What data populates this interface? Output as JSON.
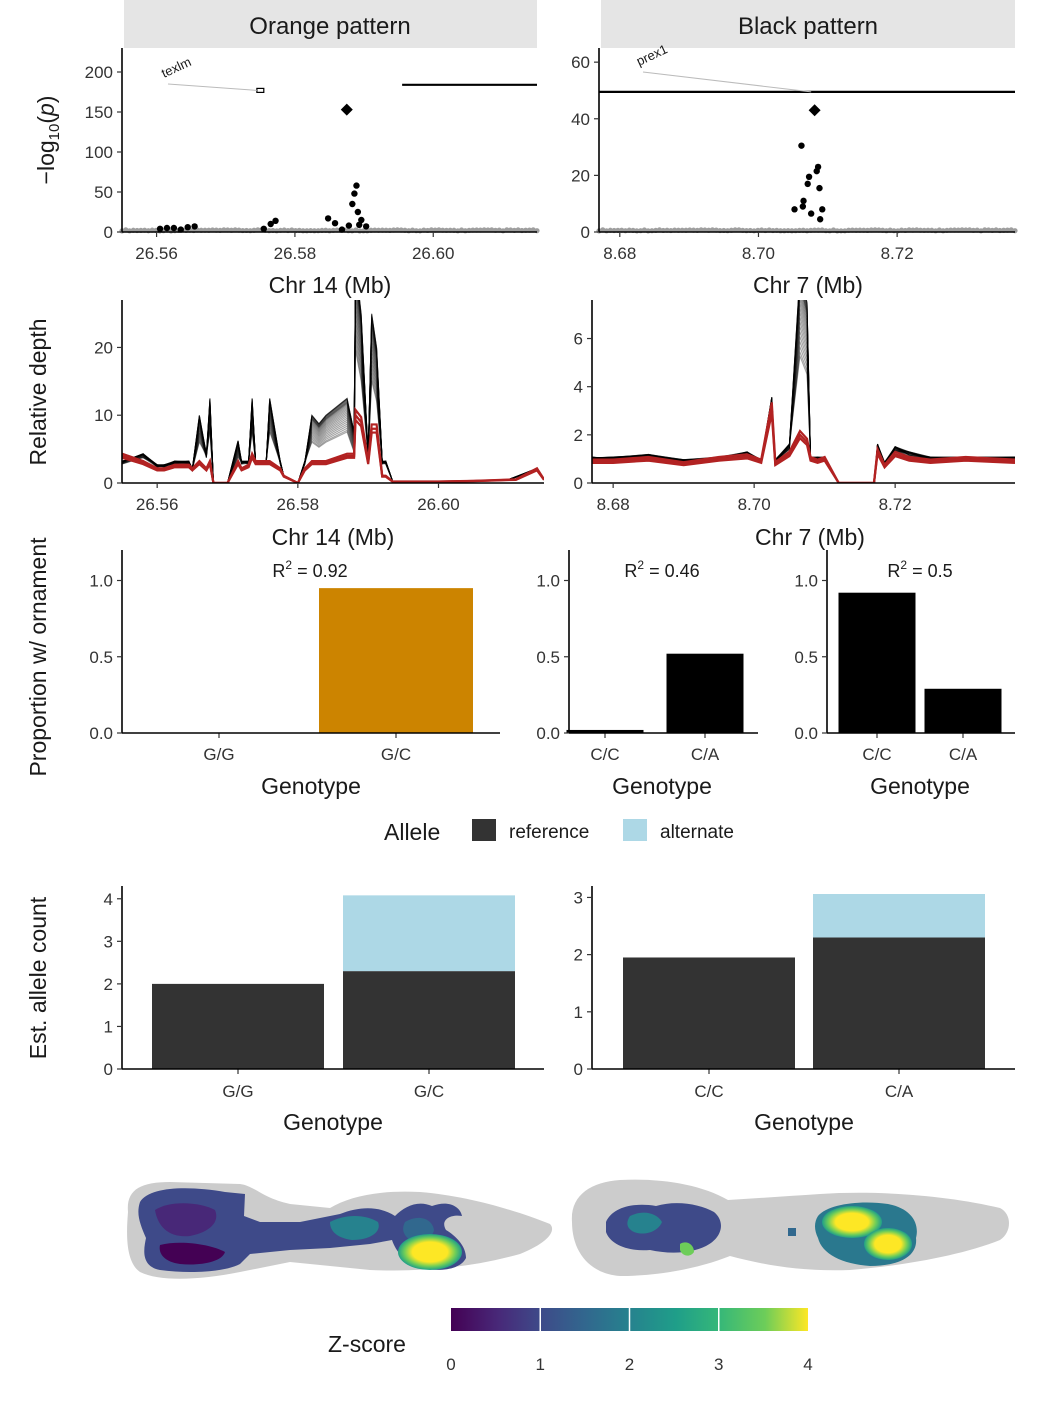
{
  "facets": {
    "orange": "Orange pattern",
    "black": "Black pattern"
  },
  "labels": {
    "neglogp": "−log10(p)",
    "rel_depth": "Relative depth",
    "prop_orn": "Proportion w/ ornament",
    "est_allele": "Est. allele count",
    "chr14": "Chr 14 (Mb)",
    "chr7": "Chr 7 (Mb)",
    "genotype": "Genotype"
  },
  "genes": {
    "orange": "texlm",
    "black": "prex1"
  },
  "legend": {
    "title": "Allele",
    "reference": "reference",
    "alternate": "alternate"
  },
  "colorbar": {
    "title": "Z-score",
    "ticks": [
      "0",
      "1",
      "2",
      "3",
      "4"
    ]
  },
  "colors": {
    "orange_bar": "#CC8400",
    "black_bar": "#000000",
    "reference": "#333333",
    "alternate": "#ADD8E6",
    "red_line": "#B22222",
    "strip_bg": "#E5E5E5",
    "fish_bg": "#CCCCCC"
  },
  "chart_data": [
    {
      "type": "scatter",
      "panel": "orange-manhattan",
      "title": "Orange pattern",
      "xlabel": "Chr 14 (Mb)",
      "ylabel": "−log10(p)",
      "xlim": [
        26.555,
        26.615
      ],
      "ylim": [
        0,
        230
      ],
      "xticks": [
        "26.56",
        "26.58",
        "26.60"
      ],
      "yticks": [
        "0",
        "50",
        "100",
        "150",
        "200"
      ],
      "lead_snp": [
        26.5875,
        153
      ],
      "points": [
        [
          26.5605,
          4
        ],
        [
          26.5615,
          5
        ],
        [
          26.5625,
          5
        ],
        [
          26.5635,
          3
        ],
        [
          26.5645,
          6
        ],
        [
          26.5655,
          7
        ],
        [
          26.5755,
          4
        ],
        [
          26.5765,
          10
        ],
        [
          26.5772,
          14
        ],
        [
          26.5848,
          17
        ],
        [
          26.5858,
          11
        ],
        [
          26.5868,
          3
        ],
        [
          26.5878,
          8
        ],
        [
          26.5883,
          35
        ],
        [
          26.5886,
          48
        ],
        [
          26.5889,
          58
        ],
        [
          26.5891,
          25
        ],
        [
          26.5893,
          9
        ],
        [
          26.5903,
          7
        ],
        [
          26.5896,
          15
        ]
      ],
      "gene_track": [
        {
          "name": "texlm",
          "start": 26.5745,
          "end": 26.5755,
          "y": 177
        },
        {
          "name": "",
          "start": 26.5955,
          "end": 26.615,
          "y": 184
        }
      ]
    },
    {
      "type": "scatter",
      "panel": "black-manhattan",
      "title": "Black pattern",
      "xlabel": "Chr 7 (Mb)",
      "ylabel": "−log10(p)",
      "xlim": [
        8.677,
        8.737
      ],
      "ylim": [
        0,
        65
      ],
      "xticks": [
        "8.68",
        "8.70",
        "8.72"
      ],
      "yticks": [
        "0",
        "20",
        "40",
        "60"
      ],
      "lead_snp": [
        8.7081,
        43
      ],
      "points": [
        [
          8.7062,
          30.5
        ],
        [
          8.7052,
          8
        ],
        [
          8.7064,
          9
        ],
        [
          8.7071,
          17
        ],
        [
          8.7073,
          19.5
        ],
        [
          8.7065,
          11
        ],
        [
          8.7076,
          6.5
        ],
        [
          8.7086,
          23
        ],
        [
          8.7088,
          15.5
        ],
        [
          8.7084,
          21.5
        ],
        [
          8.7092,
          8
        ],
        [
          8.7089,
          4.5
        ]
      ],
      "gene_track": [
        {
          "name": "prex1",
          "start": 8.677,
          "end": 8.737,
          "y": 49.5
        }
      ]
    },
    {
      "type": "line",
      "panel": "orange-depth",
      "xlabel": "Chr 14 (Mb)",
      "ylabel": "Relative depth",
      "xlim": [
        26.555,
        26.615
      ],
      "ylim": [
        0,
        27
      ],
      "xticks": [
        "26.56",
        "26.58",
        "26.60"
      ],
      "yticks": [
        "0",
        "10",
        "20"
      ],
      "series": [
        {
          "name": "",
          "x": [
            26.555,
            26.558,
            26.56,
            26.561,
            26.5625,
            26.5645,
            26.565,
            26.566,
            26.567,
            26.5675,
            26.568,
            26.57,
            26.5715,
            26.572,
            26.573,
            26.5735,
            26.574,
            26.5755,
            26.576,
            26.5775,
            26.578,
            26.58,
            26.581,
            26.582,
            26.583,
            26.584,
            26.5855,
            26.587,
            26.588,
            26.5882,
            26.589,
            26.59,
            26.5905,
            26.5912,
            26.592,
            26.5925,
            26.5935,
            26.595,
            26.6,
            26.605,
            26.61,
            26.614,
            26.615
          ],
          "values": [
            3,
            4,
            2.5,
            2.5,
            3,
            3,
            2,
            8,
            4,
            10,
            0,
            0,
            5,
            3,
            3,
            10,
            3,
            3,
            10,
            3,
            1,
            0,
            3,
            8,
            7,
            8,
            9,
            10,
            6,
            26,
            20,
            4,
            20,
            16,
            3,
            3,
            0.2,
            0.2,
            0.2,
            0.3,
            0.5,
            2,
            0.5
          ]
        },
        {
          "name": "",
          "x": [
            26.555,
            26.558,
            26.56,
            26.561,
            26.5625,
            26.5645,
            26.565,
            26.566,
            26.567,
            26.5675,
            26.568,
            26.57,
            26.5715,
            26.572,
            26.573,
            26.5735,
            26.574,
            26.5755,
            26.576,
            26.5775,
            26.578,
            26.58,
            26.581,
            26.582,
            26.583,
            26.584,
            26.5855,
            26.587,
            26.588,
            26.5882,
            26.589,
            26.59,
            26.5905,
            26.5912,
            26.592,
            26.5925,
            26.5935,
            26.595,
            26.6,
            26.605,
            26.611,
            26.614,
            26.615
          ],
          "values": [
            4,
            3,
            2,
            2,
            2.5,
            2.5,
            2,
            3,
            2,
            3,
            0,
            0,
            3,
            2,
            2.5,
            4,
            3,
            3,
            3,
            2,
            1,
            0,
            2,
            3,
            3,
            3,
            3.5,
            4,
            4,
            10,
            9,
            3,
            8,
            8,
            1,
            1,
            0.2,
            0.2,
            0.2,
            0.3,
            0.5,
            2,
            0.5
          ]
        }
      ]
    },
    {
      "type": "line",
      "panel": "black-depth",
      "xlabel": "Chr 7 (Mb)",
      "ylabel": "Relative depth",
      "xlim": [
        8.677,
        8.737
      ],
      "ylim": [
        0,
        7.6
      ],
      "xticks": [
        "8.68",
        "8.70",
        "8.72"
      ],
      "yticks": [
        "0",
        "2",
        "4",
        "6"
      ],
      "series": [
        {
          "name": "",
          "x": [
            8.677,
            8.68,
            8.685,
            8.69,
            8.695,
            8.699,
            8.701,
            8.7025,
            8.703,
            8.705,
            8.7065,
            8.7075,
            8.708,
            8.709,
            8.71,
            8.712,
            8.717,
            8.7175,
            8.7185,
            8.72,
            8.722,
            8.725,
            8.73,
            8.737
          ],
          "values": [
            1,
            1,
            1.1,
            0.9,
            1,
            1.2,
            0.9,
            3.3,
            0.9,
            1.5,
            7,
            6,
            1,
            1,
            1,
            0,
            0,
            1.5,
            0.8,
            1.4,
            1.2,
            1,
            1,
            1
          ]
        },
        {
          "name": "",
          "x": [
            8.677,
            8.68,
            8.685,
            8.69,
            8.695,
            8.699,
            8.701,
            8.7025,
            8.703,
            8.705,
            8.7065,
            8.7075,
            8.708,
            8.709,
            8.71,
            8.712,
            8.717,
            8.7175,
            8.7185,
            8.72,
            8.722,
            8.725,
            8.73,
            8.737
          ],
          "values": [
            0.9,
            0.9,
            1,
            0.8,
            1,
            1.1,
            0.9,
            3.1,
            0.8,
            1.2,
            2,
            1.7,
            1,
            0.9,
            1,
            0,
            0,
            1.3,
            0.7,
            1.2,
            1,
            0.9,
            1,
            0.9
          ]
        }
      ]
    },
    {
      "type": "bar",
      "panel": "orange-proportion",
      "title": "R2 = 0.92",
      "xlabel": "Genotype",
      "ylabel": "Proportion w/ ornament",
      "categories": [
        "G/G",
        "G/C"
      ],
      "values": [
        0,
        0.95
      ],
      "ylim": [
        0,
        1.2
      ],
      "yticks": [
        "0.0",
        "0.5",
        "1.0"
      ],
      "r2_value": "0.92"
    },
    {
      "type": "bar",
      "panel": "black-proportion-1",
      "title": "R2 = 0.46",
      "xlabel": "Genotype",
      "ylabel": "Proportion w/ ornament",
      "categories": [
        "C/C",
        "C/A"
      ],
      "values": [
        0.02,
        0.52
      ],
      "ylim": [
        0,
        1.2
      ],
      "yticks": [
        "0.0",
        "0.5",
        "1.0"
      ],
      "r2_value": "0.46"
    },
    {
      "type": "bar",
      "panel": "black-proportion-2",
      "title": "R2 = 0.5",
      "xlabel": "Genotype",
      "ylabel": "Proportion w/ ornament",
      "categories": [
        "C/C",
        "C/A"
      ],
      "values": [
        0.92,
        0.29
      ],
      "ylim": [
        0,
        1.2
      ],
      "yticks": [
        "0.0",
        "0.5",
        "1.0"
      ],
      "r2_value": "0.5"
    },
    {
      "type": "bar",
      "panel": "orange-allele",
      "xlabel": "Genotype",
      "ylabel": "Est. allele count",
      "categories": [
        "G/G",
        "G/C"
      ],
      "ylim": [
        0,
        4.3
      ],
      "yticks": [
        "0",
        "1",
        "2",
        "3",
        "4"
      ],
      "series": [
        {
          "name": "reference",
          "values": [
            2,
            2.3
          ]
        },
        {
          "name": "alternate",
          "values": [
            0,
            1.78
          ]
        }
      ]
    },
    {
      "type": "bar",
      "panel": "black-allele",
      "xlabel": "Genotype",
      "ylabel": "Est. allele count",
      "categories": [
        "C/C",
        "C/A"
      ],
      "ylim": [
        0,
        3.2
      ],
      "yticks": [
        "0",
        "1",
        "2",
        "3"
      ],
      "series": [
        {
          "name": "reference",
          "values": [
            1.95,
            2.3
          ]
        },
        {
          "name": "alternate",
          "values": [
            0,
            0.76
          ]
        }
      ]
    },
    {
      "type": "heatmap",
      "panel": "zscore-maps",
      "zlim": [
        0,
        4
      ],
      "colorbar_ticks": [
        "0",
        "1",
        "2",
        "3",
        "4"
      ]
    }
  ]
}
